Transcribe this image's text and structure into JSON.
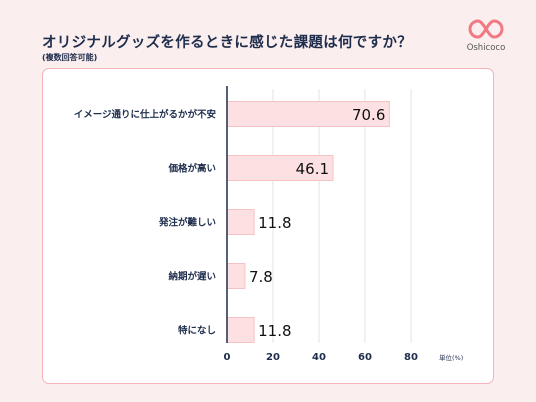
{
  "title": "オリジナルグッズを作るときに感じた課題は何ですか？",
  "subtitle": "(複数回答可能)",
  "logo_text": "Oshicoco",
  "colors": {
    "background": "#fbeeee",
    "panel_border": "#f4b3b8",
    "bar_fill": "#fde0e1",
    "bar_stroke": "#f6c2c5",
    "text": "#1f2d4d",
    "logo": "#f07a84"
  },
  "chart_data": {
    "type": "bar",
    "orientation": "horizontal",
    "categories": [
      "イメージ通りに仕上がるかが不安",
      "価格が高い",
      "発注が難しい",
      "納期が遅い",
      "特になし"
    ],
    "values": [
      70.6,
      46.1,
      11.8,
      7.8,
      11.8
    ],
    "data_labels": [
      "70.6",
      "46.1",
      "11.8",
      "7.8",
      "11.8"
    ],
    "xlim": [
      0,
      80
    ],
    "xticks": [
      "0",
      "20",
      "40",
      "60",
      "80"
    ],
    "unit_label": "単位(%)",
    "grid": true
  }
}
